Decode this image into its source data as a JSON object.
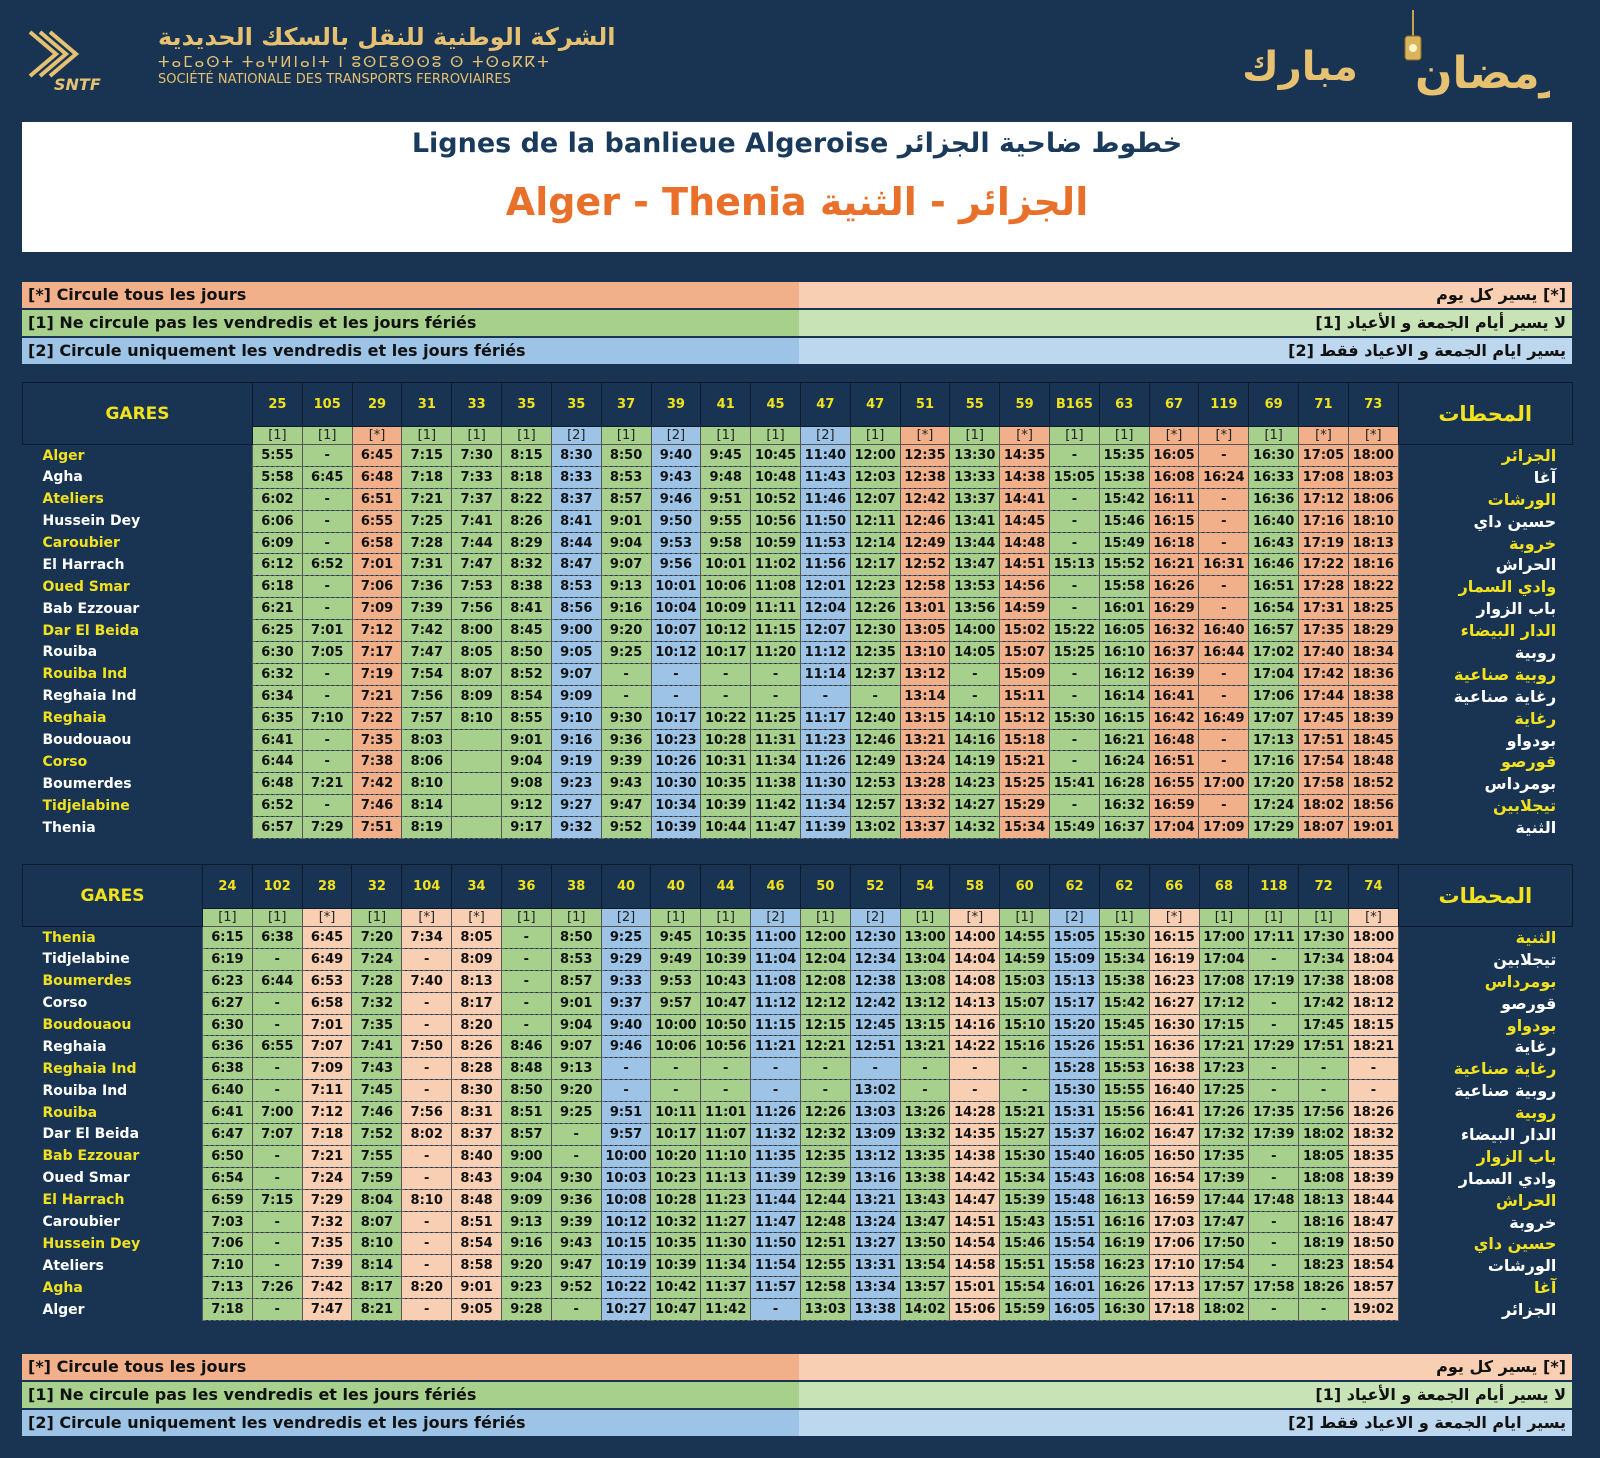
{
  "header": {
    "company_ar": "الشركة الوطنية للنقل بالسكك الحديدية",
    "company_tifinagh": "ⵜⴰⵎⴰⵙⵜ ⵜⴰⵖⵍⵏⴰⵏⵜ ⵏ ⵓⵙⵎⵓⵙⵙⵓ ⵙ ⵜⵙⴰⴽⴽⵜ",
    "company_fr": "SOCIÉTÉ NATIONALE DES TRANSPORTS FERROVIAIRES",
    "logo_text": "SNTF",
    "greeting_ramadan": "رمضان",
    "greeting_mubarak": "مبارك",
    "title_line1": "Lignes de la banlieue Algeroise  خطوط ضاحية الجزائر",
    "title_line2": "Alger - Thenia  الجزائر - الثنية",
    "colors": {
      "background": "#183452",
      "gold": "#e6c172",
      "title_orange": "#e8702a",
      "station_yellow": "#f2e21e",
      "daily": "#f2b08a",
      "weekday": "#a8d08d",
      "friday": "#9dc3e6"
    }
  },
  "legend": [
    {
      "fr": "[*]  Circule tous les jours",
      "ar": "يسير كل يوم [*]"
    },
    {
      "fr": "[1]  Ne circule pas les vendredis et les jours fériés",
      "ar": "لا يسير أيام الجمعة و الأعياد [1]"
    },
    {
      "fr": "[2]  Circule uniquement les vendredis et les jours fériés",
      "ar": "يسير ايام الجمعة و الاعياد  فقط [2]"
    }
  ],
  "table1": {
    "gares_label": "GARES",
    "stations_label_ar": "المحطات",
    "trains": [
      "25",
      "105",
      "29",
      "31",
      "33",
      "35",
      "35",
      "37",
      "39",
      "41",
      "45",
      "47",
      "47",
      "51",
      "55",
      "59",
      "B165",
      "63",
      "67",
      "119",
      "69",
      "71",
      "73"
    ],
    "codes": [
      "[1]",
      "[1]",
      "[*]",
      "[1]",
      "[1]",
      "[1]",
      "[2]",
      "[1]",
      "[2]",
      "[1]",
      "[1]",
      "[2]",
      "[1]",
      "[*]",
      "[1]",
      "[*]",
      "[1]",
      "[1]",
      "[*]",
      "[*]",
      "[1]",
      "[*]",
      "[*]"
    ],
    "stations_fr": [
      "Alger",
      "Agha",
      "Ateliers",
      "Hussein Dey",
      "Caroubier",
      "El Harrach",
      "Oued Smar",
      "Bab Ezzouar",
      "Dar El Beida",
      "Rouiba",
      "Rouiba Ind",
      "Reghaia Ind",
      "Reghaia",
      "Boudouaou",
      "Corso",
      "Boumerdes",
      "Tidjelabine",
      "Thenia"
    ],
    "stations_ar": [
      "الجزائر",
      "آغا",
      "الورشات",
      "حسين داي",
      "خروبة",
      "الحراش",
      "وادي السمار",
      "باب الزوار",
      "الدار البيضاء",
      "روبية",
      "روبية صناعية",
      "رغاية صناعية",
      "رغاية",
      "بودواو",
      "قورصو",
      "بومرداس",
      "تيجلابين",
      "الثنية"
    ],
    "times": [
      [
        "5:55",
        "-",
        "6:45",
        "7:15",
        "7:30",
        "8:15",
        "8:30",
        "8:50",
        "9:40",
        "9:45",
        "10:45",
        "11:40",
        "12:00",
        "12:35",
        "13:30",
        "14:35",
        "-",
        "15:35",
        "16:05",
        "-",
        "16:30",
        "17:05",
        "18:00"
      ],
      [
        "5:58",
        "6:45",
        "6:48",
        "7:18",
        "7:33",
        "8:18",
        "8:33",
        "8:53",
        "9:43",
        "9:48",
        "10:48",
        "11:43",
        "12:03",
        "12:38",
        "13:33",
        "14:38",
        "15:05",
        "15:38",
        "16:08",
        "16:24",
        "16:33",
        "17:08",
        "18:03"
      ],
      [
        "6:02",
        "-",
        "6:51",
        "7:21",
        "7:37",
        "8:22",
        "8:37",
        "8:57",
        "9:46",
        "9:51",
        "10:52",
        "11:46",
        "12:07",
        "12:42",
        "13:37",
        "14:41",
        "-",
        "15:42",
        "16:11",
        "-",
        "16:36",
        "17:12",
        "18:06"
      ],
      [
        "6:06",
        "-",
        "6:55",
        "7:25",
        "7:41",
        "8:26",
        "8:41",
        "9:01",
        "9:50",
        "9:55",
        "10:56",
        "11:50",
        "12:11",
        "12:46",
        "13:41",
        "14:45",
        "-",
        "15:46",
        "16:15",
        "-",
        "16:40",
        "17:16",
        "18:10"
      ],
      [
        "6:09",
        "-",
        "6:58",
        "7:28",
        "7:44",
        "8:29",
        "8:44",
        "9:04",
        "9:53",
        "9:58",
        "10:59",
        "11:53",
        "12:14",
        "12:49",
        "13:44",
        "14:48",
        "-",
        "15:49",
        "16:18",
        "-",
        "16:43",
        "17:19",
        "18:13"
      ],
      [
        "6:12",
        "6:52",
        "7:01",
        "7:31",
        "7:47",
        "8:32",
        "8:47",
        "9:07",
        "9:56",
        "10:01",
        "11:02",
        "11:56",
        "12:17",
        "12:52",
        "13:47",
        "14:51",
        "15:13",
        "15:52",
        "16:21",
        "16:31",
        "16:46",
        "17:22",
        "18:16"
      ],
      [
        "6:18",
        "-",
        "7:06",
        "7:36",
        "7:53",
        "8:38",
        "8:53",
        "9:13",
        "10:01",
        "10:06",
        "11:08",
        "12:01",
        "12:23",
        "12:58",
        "13:53",
        "14:56",
        "-",
        "15:58",
        "16:26",
        "-",
        "16:51",
        "17:28",
        "18:22"
      ],
      [
        "6:21",
        "-",
        "7:09",
        "7:39",
        "7:56",
        "8:41",
        "8:56",
        "9:16",
        "10:04",
        "10:09",
        "11:11",
        "12:04",
        "12:26",
        "13:01",
        "13:56",
        "14:59",
        "-",
        "16:01",
        "16:29",
        "-",
        "16:54",
        "17:31",
        "18:25"
      ],
      [
        "6:25",
        "7:01",
        "7:12",
        "7:42",
        "8:00",
        "8:45",
        "9:00",
        "9:20",
        "10:07",
        "10:12",
        "11:15",
        "12:07",
        "12:30",
        "13:05",
        "14:00",
        "15:02",
        "15:22",
        "16:05",
        "16:32",
        "16:40",
        "16:57",
        "17:35",
        "18:29"
      ],
      [
        "6:30",
        "7:05",
        "7:17",
        "7:47",
        "8:05",
        "8:50",
        "9:05",
        "9:25",
        "10:12",
        "10:17",
        "11:20",
        "11:12",
        "12:35",
        "13:10",
        "14:05",
        "15:07",
        "15:25",
        "16:10",
        "16:37",
        "16:44",
        "17:02",
        "17:40",
        "18:34"
      ],
      [
        "6:32",
        "-",
        "7:19",
        "7:54",
        "8:07",
        "8:52",
        "9:07",
        "-",
        "-",
        "-",
        "-",
        "11:14",
        "12:37",
        "13:12",
        "-",
        "15:09",
        "-",
        "16:12",
        "16:39",
        "-",
        "17:04",
        "17:42",
        "18:36"
      ],
      [
        "6:34",
        "-",
        "7:21",
        "7:56",
        "8:09",
        "8:54",
        "9:09",
        "-",
        "-",
        "-",
        "-",
        "-",
        "-",
        "13:14",
        "-",
        "15:11",
        "-",
        "16:14",
        "16:41",
        "-",
        "17:06",
        "17:44",
        "18:38"
      ],
      [
        "6:35",
        "7:10",
        "7:22",
        "7:57",
        "8:10",
        "8:55",
        "9:10",
        "9:30",
        "10:17",
        "10:22",
        "11:25",
        "11:17",
        "12:40",
        "13:15",
        "14:10",
        "15:12",
        "15:30",
        "16:15",
        "16:42",
        "16:49",
        "17:07",
        "17:45",
        "18:39"
      ],
      [
        "6:41",
        "-",
        "7:35",
        "8:03",
        "",
        "9:01",
        "9:16",
        "9:36",
        "10:23",
        "10:28",
        "11:31",
        "11:23",
        "12:46",
        "13:21",
        "14:16",
        "15:18",
        "-",
        "16:21",
        "16:48",
        "-",
        "17:13",
        "17:51",
        "18:45"
      ],
      [
        "6:44",
        "-",
        "7:38",
        "8:06",
        "",
        "9:04",
        "9:19",
        "9:39",
        "10:26",
        "10:31",
        "11:34",
        "11:26",
        "12:49",
        "13:24",
        "14:19",
        "15:21",
        "-",
        "16:24",
        "16:51",
        "-",
        "17:16",
        "17:54",
        "18:48"
      ],
      [
        "6:48",
        "7:21",
        "7:42",
        "8:10",
        "",
        "9:08",
        "9:23",
        "9:43",
        "10:30",
        "10:35",
        "11:38",
        "11:30",
        "12:53",
        "13:28",
        "14:23",
        "15:25",
        "15:41",
        "16:28",
        "16:55",
        "17:00",
        "17:20",
        "17:58",
        "18:52"
      ],
      [
        "6:52",
        "-",
        "7:46",
        "8:14",
        "",
        "9:12",
        "9:27",
        "9:47",
        "10:34",
        "10:39",
        "11:42",
        "11:34",
        "12:57",
        "13:32",
        "14:27",
        "15:29",
        "-",
        "16:32",
        "16:59",
        "-",
        "17:24",
        "18:02",
        "18:56"
      ],
      [
        "6:57",
        "7:29",
        "7:51",
        "8:19",
        "",
        "9:17",
        "9:32",
        "9:52",
        "10:39",
        "10:44",
        "11:47",
        "11:39",
        "13:02",
        "13:37",
        "14:32",
        "15:34",
        "15:49",
        "16:37",
        "17:04",
        "17:09",
        "17:29",
        "18:07",
        "19:01"
      ]
    ]
  },
  "table2": {
    "gares_label": "GARES",
    "stations_label_ar": "المحطات",
    "trains": [
      "24",
      "102",
      "28",
      "32",
      "104",
      "34",
      "36",
      "38",
      "40",
      "40",
      "44",
      "46",
      "50",
      "52",
      "54",
      "58",
      "60",
      "62",
      "62",
      "66",
      "68",
      "118",
      "72",
      "74"
    ],
    "codes": [
      "[1]",
      "[1]",
      "[*]",
      "[1]",
      "[*]",
      "[*]",
      "[1]",
      "[1]",
      "[2]",
      "[1]",
      "[1]",
      "[2]",
      "[1]",
      "[2]",
      "[1]",
      "[*]",
      "[1]",
      "[2]",
      "[1]",
      "[*]",
      "[1]",
      "[1]",
      "[1]",
      "[*]"
    ],
    "stations_fr": [
      "Thenia",
      "Tidjelabine",
      "Boumerdes",
      "Corso",
      "Boudouaou",
      "Reghaia",
      "Reghaia Ind",
      "Rouiba Ind",
      "Rouiba",
      "Dar El Beida",
      "Bab Ezzouar",
      "Oued Smar",
      "El Harrach",
      "Caroubier",
      "Hussein Dey",
      "Ateliers",
      "Agha",
      "Alger"
    ],
    "stations_ar": [
      "الثنية",
      "تيجلابين",
      "بومرداس",
      "قورصو",
      "بودواو",
      "رغاية",
      "رغاية صناعية",
      "روبية صناعية",
      "روبية",
      "الدار البيضاء",
      "باب الزوار",
      "وادي السمار",
      "الحراش",
      "خروبة",
      "حسين داي",
      "الورشات",
      "آغا",
      "الجزائر"
    ],
    "times": [
      [
        "6:15",
        "6:38",
        "6:45",
        "7:20",
        "7:34",
        "8:05",
        "-",
        "8:50",
        "9:25",
        "9:45",
        "10:35",
        "11:00",
        "12:00",
        "12:30",
        "13:00",
        "14:00",
        "14:55",
        "15:05",
        "15:30",
        "16:15",
        "17:00",
        "17:11",
        "17:30",
        "18:00"
      ],
      [
        "6:19",
        "-",
        "6:49",
        "7:24",
        "-",
        "8:09",
        "-",
        "8:53",
        "9:29",
        "9:49",
        "10:39",
        "11:04",
        "12:04",
        "12:34",
        "13:04",
        "14:04",
        "14:59",
        "15:09",
        "15:34",
        "16:19",
        "17:04",
        "-",
        "17:34",
        "18:04"
      ],
      [
        "6:23",
        "6:44",
        "6:53",
        "7:28",
        "7:40",
        "8:13",
        "-",
        "8:57",
        "9:33",
        "9:53",
        "10:43",
        "11:08",
        "12:08",
        "12:38",
        "13:08",
        "14:08",
        "15:03",
        "15:13",
        "15:38",
        "16:23",
        "17:08",
        "17:19",
        "17:38",
        "18:08"
      ],
      [
        "6:27",
        "-",
        "6:58",
        "7:32",
        "-",
        "8:17",
        "-",
        "9:01",
        "9:37",
        "9:57",
        "10:47",
        "11:12",
        "12:12",
        "12:42",
        "13:12",
        "14:13",
        "15:07",
        "15:17",
        "15:42",
        "16:27",
        "17:12",
        "-",
        "17:42",
        "18:12"
      ],
      [
        "6:30",
        "-",
        "7:01",
        "7:35",
        "-",
        "8:20",
        "-",
        "9:04",
        "9:40",
        "10:00",
        "10:50",
        "11:15",
        "12:15",
        "12:45",
        "13:15",
        "14:16",
        "15:10",
        "15:20",
        "15:45",
        "16:30",
        "17:15",
        "-",
        "17:45",
        "18:15"
      ],
      [
        "6:36",
        "6:55",
        "7:07",
        "7:41",
        "7:50",
        "8:26",
        "8:46",
        "9:07",
        "9:46",
        "10:06",
        "10:56",
        "11:21",
        "12:21",
        "12:51",
        "13:21",
        "14:22",
        "15:16",
        "15:26",
        "15:51",
        "16:36",
        "17:21",
        "17:29",
        "17:51",
        "18:21"
      ],
      [
        "6:38",
        "-",
        "7:09",
        "7:43",
        "-",
        "8:28",
        "8:48",
        "9:13",
        "-",
        "-",
        "-",
        "-",
        "-",
        "-",
        "-",
        "-",
        "-",
        "15:28",
        "15:53",
        "16:38",
        "17:23",
        "-",
        "-",
        "-"
      ],
      [
        "6:40",
        "-",
        "7:11",
        "7:45",
        "-",
        "8:30",
        "8:50",
        "9:20",
        "-",
        "-",
        "-",
        "-",
        "-",
        "13:02",
        "-",
        "-",
        "-",
        "15:30",
        "15:55",
        "16:40",
        "17:25",
        "-",
        "-",
        "-"
      ],
      [
        "6:41",
        "7:00",
        "7:12",
        "7:46",
        "7:56",
        "8:31",
        "8:51",
        "9:25",
        "9:51",
        "10:11",
        "11:01",
        "11:26",
        "12:26",
        "13:03",
        "13:26",
        "14:28",
        "15:21",
        "15:31",
        "15:56",
        "16:41",
        "17:26",
        "17:35",
        "17:56",
        "18:26"
      ],
      [
        "6:47",
        "7:07",
        "7:18",
        "7:52",
        "8:02",
        "8:37",
        "8:57",
        "-",
        "9:57",
        "10:17",
        "11:07",
        "11:32",
        "12:32",
        "13:09",
        "13:32",
        "14:35",
        "15:27",
        "15:37",
        "16:02",
        "16:47",
        "17:32",
        "17:39",
        "18:02",
        "18:32"
      ],
      [
        "6:50",
        "-",
        "7:21",
        "7:55",
        "-",
        "8:40",
        "9:00",
        "-",
        "10:00",
        "10:20",
        "11:10",
        "11:35",
        "12:35",
        "13:12",
        "13:35",
        "14:38",
        "15:30",
        "15:40",
        "16:05",
        "16:50",
        "17:35",
        "-",
        "18:05",
        "18:35"
      ],
      [
        "6:54",
        "-",
        "7:24",
        "7:59",
        "-",
        "8:43",
        "9:04",
        "9:30",
        "10:03",
        "10:23",
        "11:13",
        "11:39",
        "12:39",
        "13:16",
        "13:38",
        "14:42",
        "15:34",
        "15:43",
        "16:08",
        "16:54",
        "17:39",
        "-",
        "18:08",
        "18:39"
      ],
      [
        "6:59",
        "7:15",
        "7:29",
        "8:04",
        "8:10",
        "8:48",
        "9:09",
        "9:36",
        "10:08",
        "10:28",
        "11:23",
        "11:44",
        "12:44",
        "13:21",
        "13:43",
        "14:47",
        "15:39",
        "15:48",
        "16:13",
        "16:59",
        "17:44",
        "17:48",
        "18:13",
        "18:44"
      ],
      [
        "7:03",
        "-",
        "7:32",
        "8:07",
        "-",
        "8:51",
        "9:13",
        "9:39",
        "10:12",
        "10:32",
        "11:27",
        "11:47",
        "12:48",
        "13:24",
        "13:47",
        "14:51",
        "15:43",
        "15:51",
        "16:16",
        "17:03",
        "17:47",
        "-",
        "18:16",
        "18:47"
      ],
      [
        "7:06",
        "-",
        "7:35",
        "8:10",
        "-",
        "8:54",
        "9:16",
        "9:43",
        "10:15",
        "10:35",
        "11:30",
        "11:50",
        "12:51",
        "13:27",
        "13:50",
        "14:54",
        "15:46",
        "15:54",
        "16:19",
        "17:06",
        "17:50",
        "-",
        "18:19",
        "18:50"
      ],
      [
        "7:10",
        "-",
        "7:39",
        "8:14",
        "-",
        "8:58",
        "9:20",
        "9:47",
        "10:19",
        "10:39",
        "11:34",
        "11:54",
        "12:55",
        "13:31",
        "13:54",
        "14:58",
        "15:51",
        "15:58",
        "16:23",
        "17:10",
        "17:54",
        "-",
        "18:23",
        "18:54"
      ],
      [
        "7:13",
        "7:26",
        "7:42",
        "8:17",
        "8:20",
        "9:01",
        "9:23",
        "9:52",
        "10:22",
        "10:42",
        "11:37",
        "11:57",
        "12:58",
        "13:34",
        "13:57",
        "15:01",
        "15:54",
        "16:01",
        "16:26",
        "17:13",
        "17:57",
        "17:58",
        "18:26",
        "18:57"
      ],
      [
        "7:18",
        "-",
        "7:47",
        "8:21",
        "-",
        "9:05",
        "9:28",
        "-",
        "10:27",
        "10:47",
        "11:42",
        "-",
        "13:03",
        "13:38",
        "14:02",
        "15:06",
        "15:59",
        "16:05",
        "16:30",
        "17:18",
        "18:02",
        "-",
        "-",
        "19:02"
      ]
    ]
  }
}
